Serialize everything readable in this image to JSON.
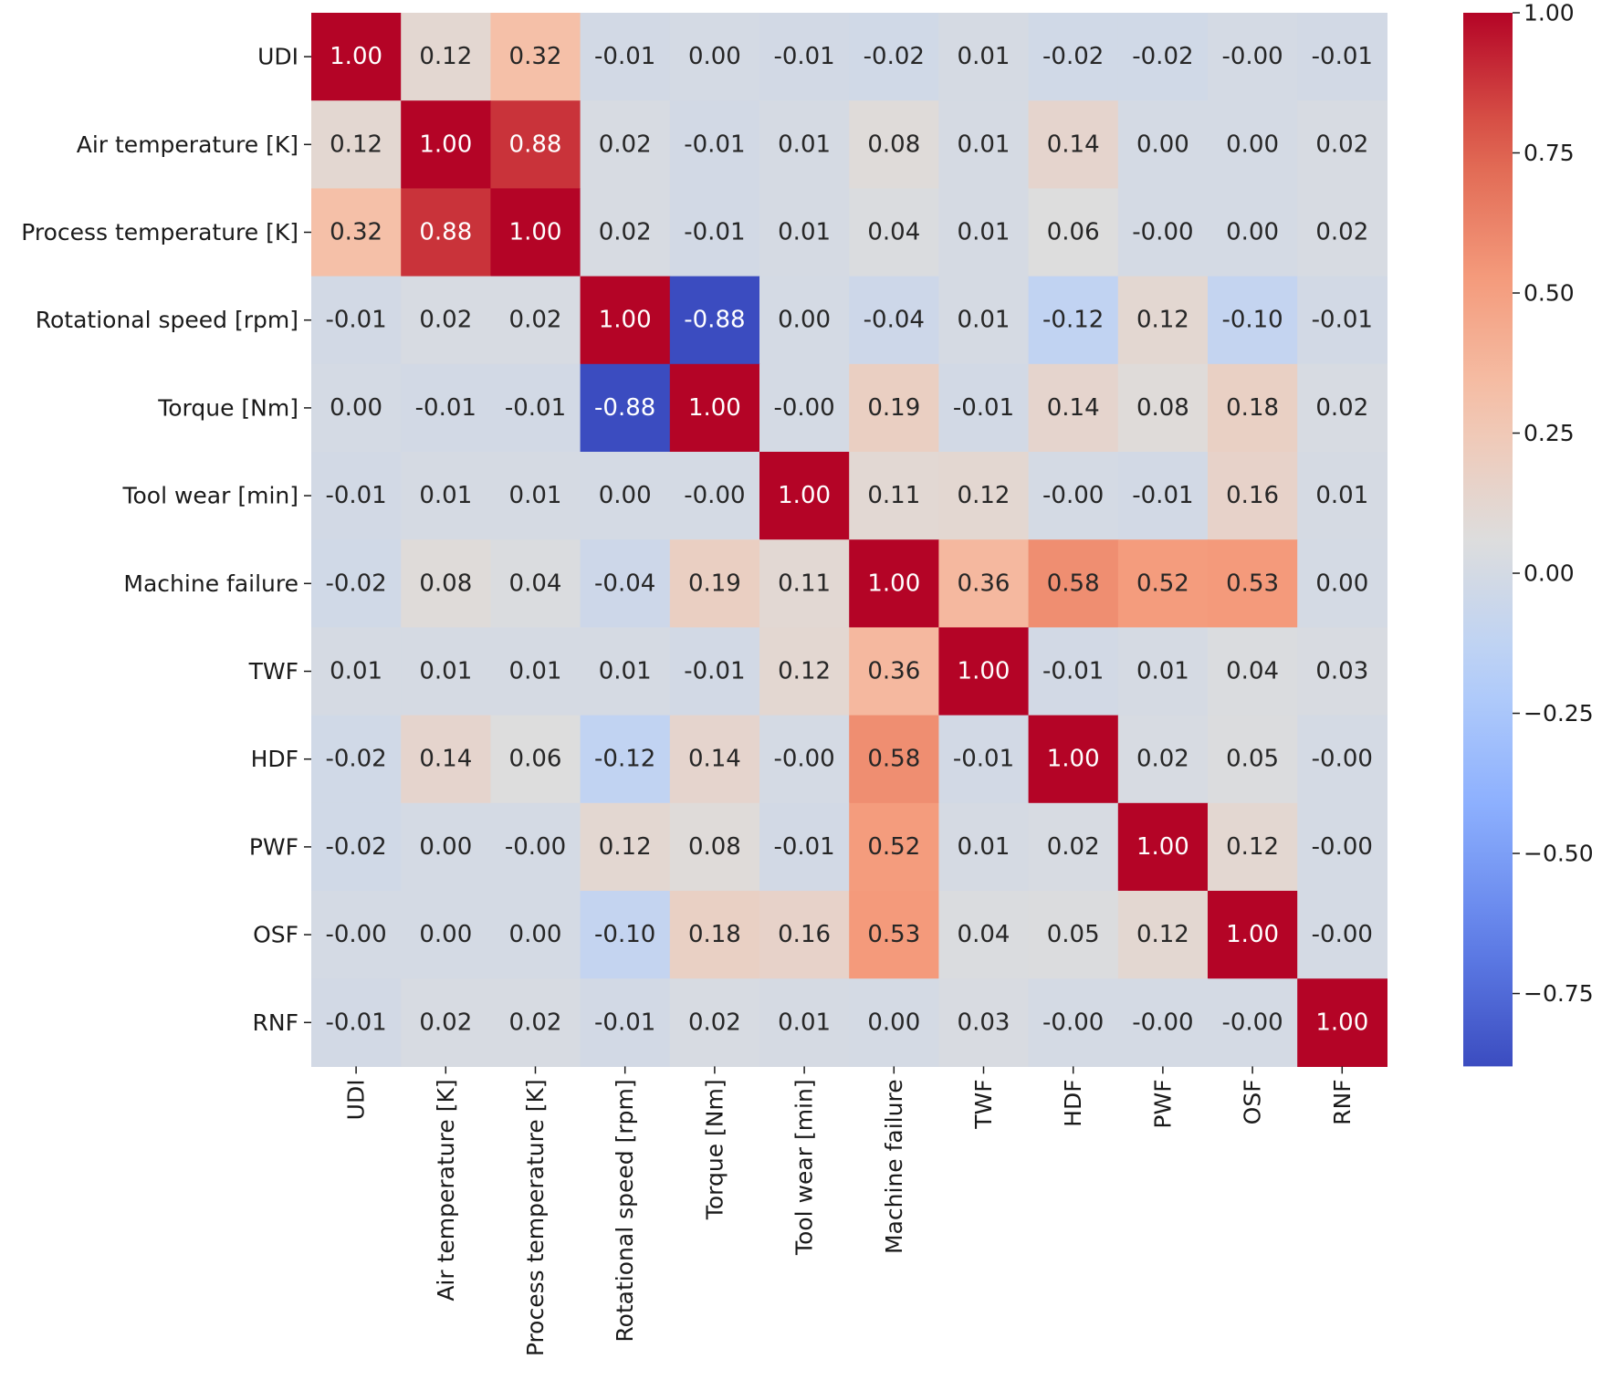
{
  "chart_data": {
    "type": "heatmap",
    "title": "",
    "xlabel": "",
    "ylabel": "",
    "labels": [
      "UDI",
      "Air temperature [K]",
      "Process temperature [K]",
      "Rotational speed [rpm]",
      "Torque [Nm]",
      "Tool wear [min]",
      "Machine failure",
      "TWF",
      "HDF",
      "PWF",
      "OSF",
      "RNF"
    ],
    "cell_text": [
      [
        "1.00",
        "0.12",
        "0.32",
        "-0.01",
        "0.00",
        "-0.01",
        "-0.02",
        "0.01",
        "-0.02",
        "-0.02",
        "-0.00",
        "-0.01"
      ],
      [
        "0.12",
        "1.00",
        "0.88",
        "0.02",
        "-0.01",
        "0.01",
        "0.08",
        "0.01",
        "0.14",
        "0.00",
        "0.00",
        "0.02"
      ],
      [
        "0.32",
        "0.88",
        "1.00",
        "0.02",
        "-0.01",
        "0.01",
        "0.04",
        "0.01",
        "0.06",
        "-0.00",
        "0.00",
        "0.02"
      ],
      [
        "-0.01",
        "0.02",
        "0.02",
        "1.00",
        "-0.88",
        "0.00",
        "-0.04",
        "0.01",
        "-0.12",
        "0.12",
        "-0.10",
        "-0.01"
      ],
      [
        "0.00",
        "-0.01",
        "-0.01",
        "-0.88",
        "1.00",
        "-0.00",
        "0.19",
        "-0.01",
        "0.14",
        "0.08",
        "0.18",
        "0.02"
      ],
      [
        "-0.01",
        "0.01",
        "0.01",
        "0.00",
        "-0.00",
        "1.00",
        "0.11",
        "0.12",
        "-0.00",
        "-0.01",
        "0.16",
        "0.01"
      ],
      [
        "-0.02",
        "0.08",
        "0.04",
        "-0.04",
        "0.19",
        "0.11",
        "1.00",
        "0.36",
        "0.58",
        "0.52",
        "0.53",
        "0.00"
      ],
      [
        "0.01",
        "0.01",
        "0.01",
        "0.01",
        "-0.01",
        "0.12",
        "0.36",
        "1.00",
        "-0.01",
        "0.01",
        "0.04",
        "0.03"
      ],
      [
        "-0.02",
        "0.14",
        "0.06",
        "-0.12",
        "0.14",
        "-0.00",
        "0.58",
        "-0.01",
        "1.00",
        "0.02",
        "0.05",
        "-0.00"
      ],
      [
        "-0.02",
        "0.00",
        "-0.00",
        "0.12",
        "0.08",
        "-0.01",
        "0.52",
        "0.01",
        "0.02",
        "1.00",
        "0.12",
        "-0.00"
      ],
      [
        "-0.00",
        "0.00",
        "0.00",
        "-0.10",
        "0.18",
        "0.16",
        "0.53",
        "0.04",
        "0.05",
        "0.12",
        "1.00",
        "-0.00"
      ],
      [
        "-0.01",
        "0.02",
        "0.02",
        "-0.01",
        "0.02",
        "0.01",
        "0.00",
        "0.03",
        "-0.00",
        "-0.00",
        "-0.00",
        "1.00"
      ]
    ],
    "colorbar": {
      "range": [
        -0.88,
        1.0
      ],
      "ticks": [
        1.0,
        0.75,
        0.5,
        0.25,
        0.0,
        -0.25,
        -0.5,
        -0.75
      ],
      "tick_labels": [
        "1.00",
        "0.75",
        "0.50",
        "0.25",
        "0.00",
        "−0.25",
        "−0.50",
        "−0.75"
      ],
      "colormap": "coolwarm"
    },
    "grid": false,
    "legend": "none"
  }
}
